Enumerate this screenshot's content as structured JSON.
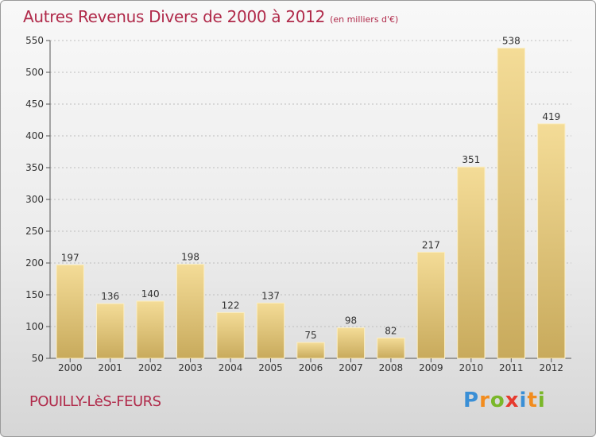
{
  "chart_data": {
    "type": "bar",
    "title": "Autres Revenus Divers de 2000 à 2012",
    "unit_label": "(en milliers d'€)",
    "categories": [
      "2000",
      "2001",
      "2002",
      "2003",
      "2004",
      "2005",
      "2006",
      "2007",
      "2008",
      "2009",
      "2010",
      "2011",
      "2012"
    ],
    "values": [
      197,
      136,
      140,
      198,
      122,
      137,
      75,
      98,
      82,
      217,
      351,
      538,
      419
    ],
    "ylim": [
      50,
      550
    ],
    "yticks": [
      50,
      100,
      150,
      200,
      250,
      300,
      350,
      400,
      450,
      500,
      550
    ],
    "grid": true,
    "bar_color": "#e2c577",
    "xlabel": "",
    "ylabel": ""
  },
  "location": "POUILLY-LèS-FEURS",
  "brand": {
    "letters": [
      "P",
      "r",
      "o",
      "x",
      "i",
      "t",
      "i"
    ],
    "colors": [
      "#3a8fd6",
      "#f28c1e",
      "#7ab729",
      "#e63a2e",
      "#3a8fd6",
      "#f28c1e",
      "#7ab729"
    ]
  }
}
